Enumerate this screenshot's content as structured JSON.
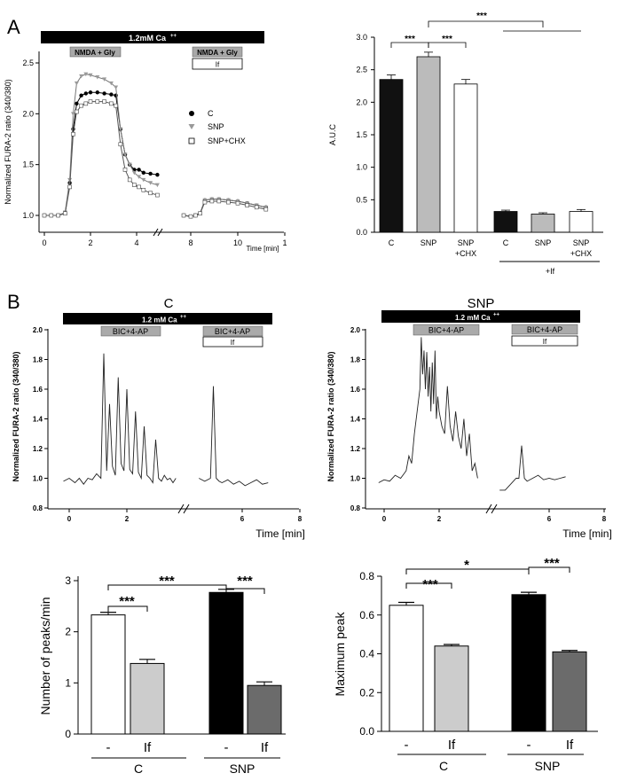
{
  "panel_labels": {
    "a": "A",
    "b": "B"
  },
  "panelA": {
    "trace": {
      "calcium_bar": "1.2mM Ca",
      "calcium_sup": "++",
      "stim_box": "NMDA + Gly",
      "stim_box2": "NMDA + Gly",
      "drug_box": "If",
      "ylabel": "Normalized  FURA-2 ratio (340/380)",
      "xlabel": "Time [min]",
      "yticks": [
        "1.0",
        "1.5",
        "2.0",
        "2.5"
      ],
      "xticks": [
        "0",
        "2",
        "4",
        "8",
        "10",
        "1"
      ],
      "legend": [
        {
          "marker": "filled-circle",
          "label": "C"
        },
        {
          "marker": "down-triangle",
          "label": "SNP"
        },
        {
          "marker": "open-square",
          "label": "SNP+CHX"
        }
      ]
    },
    "bar": {
      "ylabel": "A.U.C",
      "yticks": [
        "0.0",
        "0.5",
        "1.0",
        "1.5",
        "2.0",
        "2.5",
        "3.0"
      ],
      "categories": [
        {
          "l1": "C",
          "l2": ""
        },
        {
          "l1": "SNP",
          "l2": ""
        },
        {
          "l1": "SNP",
          "l2": "+CHX"
        },
        {
          "l1": "C",
          "l2": ""
        },
        {
          "l1": "SNP",
          "l2": ""
        },
        {
          "l1": "SNP",
          "l2": "+CHX"
        }
      ],
      "group_label": "+If",
      "sig": [
        "***",
        "***",
        "***"
      ]
    }
  },
  "panelB": {
    "traceC": {
      "title": "C",
      "calcium_bar": "1.2 mM Ca",
      "calcium_sup": "++",
      "stim_box": "BIC+4-AP",
      "stim_box2": "BIC+4-AP",
      "drug_box": "If",
      "ylabel": "Normalized FURA-2 ratio (340/380)",
      "xlabel": "Time [min]",
      "yticks": [
        "0.8",
        "1.0",
        "1.2",
        "1.4",
        "1.6",
        "1.8",
        "2.0"
      ],
      "xticks": [
        "0",
        "2",
        "6",
        "8"
      ]
    },
    "traceSNP": {
      "title": "SNP",
      "calcium_bar": "1.2 mM Ca",
      "calcium_sup": "++",
      "stim_box": "BIC+4-AP",
      "stim_box2": "BIC+4-AP",
      "drug_box": "If",
      "ylabel": "Normalized FURA-2 ratio (340/380)",
      "xlabel": "Time [min]",
      "yticks": [
        "0.8",
        "1.0",
        "1.2",
        "1.4",
        "1.6",
        "1.8",
        "2.0"
      ],
      "xticks": [
        "0",
        "2",
        "6",
        "8"
      ]
    },
    "peaks": {
      "ylabel": "Number of peaks/min",
      "yticks": [
        "0",
        "1",
        "2",
        "3"
      ],
      "cats": [
        "-",
        "If",
        "-",
        "If"
      ],
      "groups": [
        "C",
        "SNP"
      ],
      "sig": [
        "***",
        "***",
        "***"
      ]
    },
    "maxpeak": {
      "ylabel": "Maximum peak",
      "yticks": [
        "0.0",
        "0.2",
        "0.4",
        "0.6",
        "0.8"
      ],
      "cats": [
        "-",
        "If",
        "-",
        "If"
      ],
      "groups": [
        "C",
        "SNP"
      ],
      "sig": [
        "***",
        "*",
        "***"
      ]
    }
  },
  "chart_data": [
    {
      "id": "A-trace",
      "type": "line",
      "title": "",
      "xlabel": "Time [min]",
      "ylabel": "Normalized  FURA-2 ratio (340/380)",
      "ylim": [
        0.9,
        2.6
      ],
      "xlim": [
        0,
        12
      ],
      "segments": [
        [
          0,
          5
        ],
        [
          7.5,
          12
        ]
      ],
      "series": [
        {
          "name": "C",
          "x": [
            0,
            0.3,
            0.6,
            0.9,
            1.1,
            1.25,
            1.4,
            1.6,
            1.8,
            2.0,
            2.3,
            2.6,
            2.9,
            3.1,
            3.3,
            3.5,
            3.7,
            3.9,
            4.1,
            4.3,
            4.6,
            4.9,
            7.7,
            8.0,
            8.2,
            8.4,
            8.6,
            8.9,
            9.2,
            9.6,
            10.0,
            10.4,
            10.8,
            11.2
          ],
          "y": [
            1.0,
            1.0,
            1.0,
            1.02,
            1.32,
            1.85,
            2.1,
            2.18,
            2.2,
            2.21,
            2.21,
            2.2,
            2.19,
            2.18,
            1.85,
            1.6,
            1.5,
            1.45,
            1.45,
            1.42,
            1.41,
            1.4,
            1.0,
            0.99,
            1.0,
            1.02,
            1.15,
            1.16,
            1.16,
            1.15,
            1.14,
            1.12,
            1.1,
            1.08
          ]
        },
        {
          "name": "SNP",
          "x": [
            0,
            0.3,
            0.6,
            0.9,
            1.1,
            1.25,
            1.4,
            1.6,
            1.8,
            2.0,
            2.3,
            2.6,
            2.9,
            3.1,
            3.3,
            3.5,
            3.7,
            3.9,
            4.1,
            4.3,
            4.6,
            4.9,
            7.7,
            8.0,
            8.2,
            8.4,
            8.6,
            8.9,
            9.2,
            9.6,
            10.0,
            10.4,
            10.8,
            11.2
          ],
          "y": [
            1.0,
            1.0,
            1.0,
            1.03,
            1.35,
            2.0,
            2.3,
            2.37,
            2.39,
            2.38,
            2.36,
            2.34,
            2.3,
            2.26,
            1.85,
            1.6,
            1.5,
            1.42,
            1.38,
            1.35,
            1.32,
            1.3,
            1.0,
            0.99,
            1.0,
            1.02,
            1.15,
            1.16,
            1.16,
            1.15,
            1.14,
            1.12,
            1.1,
            1.08
          ]
        },
        {
          "name": "SNP+CHX",
          "x": [
            0,
            0.3,
            0.6,
            0.9,
            1.1,
            1.25,
            1.4,
            1.6,
            1.8,
            2.0,
            2.3,
            2.6,
            2.9,
            3.1,
            3.3,
            3.5,
            3.7,
            3.9,
            4.1,
            4.3,
            4.6,
            4.9,
            7.7,
            8.0,
            8.2,
            8.4,
            8.6,
            8.9,
            9.2,
            9.6,
            10.0,
            10.4,
            10.8,
            11.2
          ],
          "y": [
            1.0,
            1.0,
            1.0,
            1.02,
            1.28,
            1.8,
            2.02,
            2.08,
            2.1,
            2.12,
            2.12,
            2.12,
            2.1,
            2.08,
            1.7,
            1.45,
            1.35,
            1.3,
            1.28,
            1.25,
            1.22,
            1.2,
            1.0,
            0.99,
            1.0,
            1.02,
            1.13,
            1.14,
            1.14,
            1.13,
            1.12,
            1.1,
            1.08,
            1.06
          ]
        }
      ]
    },
    {
      "id": "A-auc",
      "type": "bar",
      "ylabel": "A.U.C",
      "ylim": [
        0,
        3.0
      ],
      "categories": [
        "C",
        "SNP",
        "SNP+CHX",
        "C +If",
        "SNP +If",
        "SNP+CHX +If"
      ],
      "values": [
        2.35,
        2.7,
        2.28,
        0.32,
        0.28,
        0.32
      ],
      "errors": [
        0.07,
        0.07,
        0.07,
        0.02,
        0.02,
        0.03
      ],
      "colors": [
        "#111111",
        "#bbbbbb",
        "#ffffff",
        "#111111",
        "#bbbbbb",
        "#ffffff"
      ]
    },
    {
      "id": "B-trace-C",
      "type": "line",
      "title": "C",
      "xlabel": "Time [min]",
      "ylabel": "Normalized FURA-2 ratio (340/380)",
      "ylim": [
        0.8,
        2.0
      ],
      "xlim": [
        -0.2,
        8
      ],
      "segments": [
        [
          -0.2,
          3.8
        ],
        [
          4.5,
          7
        ]
      ],
      "series": [
        {
          "name": "C",
          "x": [
            -0.2,
            0,
            0.2,
            0.35,
            0.5,
            0.65,
            0.8,
            0.95,
            1.1,
            1.2,
            1.3,
            1.4,
            1.5,
            1.6,
            1.7,
            1.8,
            1.9,
            2.0,
            2.1,
            2.2,
            2.3,
            2.4,
            2.5,
            2.6,
            2.7,
            2.8,
            2.9,
            3.0,
            3.1,
            3.2,
            3.3,
            3.4,
            3.5,
            3.6,
            3.7,
            4.5,
            4.7,
            4.9,
            5.0,
            5.1,
            5.2,
            5.3,
            5.5,
            5.7,
            5.9,
            6.1,
            6.3,
            6.5,
            6.7,
            6.9
          ],
          "y": [
            0.98,
            1.0,
            0.97,
            1.0,
            0.96,
            1.0,
            0.99,
            1.03,
            1.0,
            1.84,
            1.05,
            1.5,
            1.08,
            1.02,
            1.68,
            1.1,
            1.05,
            1.6,
            1.06,
            1.03,
            1.45,
            1.04,
            1.0,
            1.35,
            1.02,
            1.0,
            0.97,
            1.26,
            1.0,
            0.98,
            1.02,
            0.99,
            1.0,
            0.97,
            1.0,
            1.0,
            0.98,
            1.0,
            1.62,
            1.0,
            0.98,
            0.97,
            0.99,
            0.96,
            0.98,
            0.95,
            0.97,
            0.99,
            0.96,
            0.97
          ]
        }
      ]
    },
    {
      "id": "B-trace-SNP",
      "type": "line",
      "title": "SNP",
      "xlabel": "Time [min]",
      "ylabel": "Normalized FURA-2 ratio (340/380)",
      "ylim": [
        0.8,
        2.0
      ],
      "xlim": [
        -0.2,
        8
      ],
      "segments": [
        [
          -0.2,
          3.5
        ],
        [
          4.2,
          6.8
        ]
      ],
      "series": [
        {
          "name": "SNP",
          "x": [
            -0.2,
            0,
            0.2,
            0.4,
            0.6,
            0.8,
            0.9,
            1.0,
            1.1,
            1.2,
            1.3,
            1.35,
            1.4,
            1.45,
            1.5,
            1.55,
            1.6,
            1.65,
            1.7,
            1.75,
            1.8,
            1.85,
            1.9,
            1.95,
            2.0,
            2.1,
            2.2,
            2.3,
            2.4,
            2.5,
            2.6,
            2.7,
            2.8,
            2.9,
            3.0,
            3.1,
            3.2,
            3.3,
            3.4,
            4.2,
            4.4,
            4.6,
            4.8,
            4.9,
            5.0,
            5.1,
            5.2,
            5.4,
            5.6,
            5.8,
            6.0,
            6.2,
            6.4,
            6.6
          ],
          "y": [
            0.97,
            0.99,
            0.98,
            1.02,
            1.0,
            1.05,
            1.15,
            1.1,
            1.3,
            1.45,
            1.6,
            1.95,
            1.7,
            1.86,
            1.6,
            1.85,
            1.55,
            1.75,
            1.45,
            1.78,
            1.5,
            1.86,
            1.4,
            1.55,
            1.45,
            1.35,
            1.3,
            1.62,
            1.35,
            1.25,
            1.45,
            1.28,
            1.2,
            1.4,
            1.15,
            1.3,
            1.05,
            1.1,
            1.0,
            0.92,
            0.92,
            0.96,
            1.0,
            1.0,
            1.22,
            1.0,
            0.98,
            1.0,
            1.02,
            0.99,
            1.0,
            0.99,
            1.0,
            1.01
          ]
        }
      ]
    },
    {
      "id": "B-peaks",
      "type": "bar",
      "ylabel": "Number of peaks/min",
      "ylim": [
        0,
        3
      ],
      "categories": [
        "C -",
        "C If",
        "SNP -",
        "SNP If"
      ],
      "values": [
        2.33,
        1.38,
        2.77,
        0.95
      ],
      "errors": [
        0.05,
        0.08,
        0.06,
        0.07
      ],
      "colors": [
        "#ffffff",
        "#cccccc",
        "#000000",
        "#6b6b6b"
      ]
    },
    {
      "id": "B-maxpeak",
      "type": "bar",
      "ylabel": "Maximum peak",
      "ylim": [
        0,
        0.8
      ],
      "categories": [
        "C -",
        "C If",
        "SNP -",
        "SNP If"
      ],
      "values": [
        0.65,
        0.44,
        0.705,
        0.41
      ],
      "errors": [
        0.015,
        0.008,
        0.012,
        0.007
      ],
      "colors": [
        "#ffffff",
        "#cccccc",
        "#000000",
        "#6b6b6b"
      ]
    }
  ]
}
